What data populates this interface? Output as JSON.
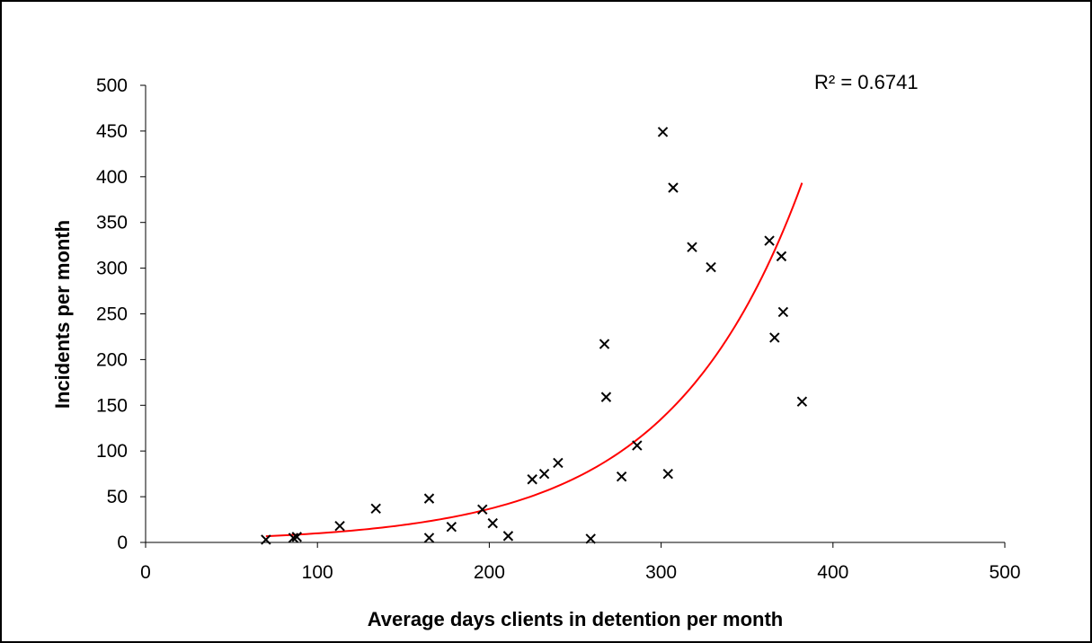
{
  "chart_data": {
    "type": "scatter",
    "title": "",
    "xlabel": "Average days clients in detention per month",
    "ylabel": "Incidents per month",
    "xlim": [
      0,
      500
    ],
    "ylim": [
      0,
      500
    ],
    "x_ticks": [
      "0",
      "100",
      "200",
      "300",
      "400",
      "500"
    ],
    "y_ticks": [
      "0",
      "50",
      "100",
      "150",
      "200",
      "250",
      "300",
      "350",
      "400",
      "450",
      "500"
    ],
    "grid": false,
    "legend": "none",
    "marker": "x",
    "marker_color": "#000000",
    "trendline": {
      "type": "exponential",
      "color": "#ff0000",
      "x_range": [
        70,
        382
      ],
      "a": 2.7,
      "b": 0.01304
    },
    "annotation": "R² = 0.6741",
    "points": [
      {
        "x": 70,
        "y": 3
      },
      {
        "x": 86,
        "y": 5
      },
      {
        "x": 88,
        "y": 6
      },
      {
        "x": 113,
        "y": 18
      },
      {
        "x": 134,
        "y": 37
      },
      {
        "x": 165,
        "y": 48
      },
      {
        "x": 165,
        "y": 5
      },
      {
        "x": 178,
        "y": 17
      },
      {
        "x": 196,
        "y": 36
      },
      {
        "x": 202,
        "y": 21
      },
      {
        "x": 211,
        "y": 7
      },
      {
        "x": 225,
        "y": 69
      },
      {
        "x": 232,
        "y": 75
      },
      {
        "x": 240,
        "y": 87
      },
      {
        "x": 259,
        "y": 4
      },
      {
        "x": 267,
        "y": 217
      },
      {
        "x": 268,
        "y": 159
      },
      {
        "x": 277,
        "y": 72
      },
      {
        "x": 286,
        "y": 106
      },
      {
        "x": 301,
        "y": 449
      },
      {
        "x": 304,
        "y": 75
      },
      {
        "x": 307,
        "y": 388
      },
      {
        "x": 318,
        "y": 323
      },
      {
        "x": 329,
        "y": 301
      },
      {
        "x": 363,
        "y": 330
      },
      {
        "x": 366,
        "y": 224
      },
      {
        "x": 370,
        "y": 313
      },
      {
        "x": 371,
        "y": 252
      },
      {
        "x": 382,
        "y": 154
      }
    ]
  }
}
